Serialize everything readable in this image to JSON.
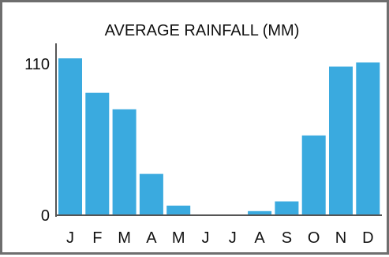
{
  "chart_data": {
    "type": "bar",
    "title": "AVERAGE RAINFALL (MM)",
    "xlabel": "",
    "ylabel": "",
    "categories": [
      "J",
      "F",
      "M",
      "A",
      "M",
      "J",
      "J",
      "A",
      "S",
      "O",
      "N",
      "D"
    ],
    "values": [
      114,
      89,
      77,
      30,
      7,
      0,
      0,
      3,
      10,
      58,
      108,
      111
    ],
    "ylim": [
      0,
      110
    ],
    "yticks": [
      "0",
      "110"
    ],
    "grid": false,
    "bar_color": "#3aaadf",
    "axis_color": "#555555",
    "frame_color": "#6e6e6e"
  }
}
